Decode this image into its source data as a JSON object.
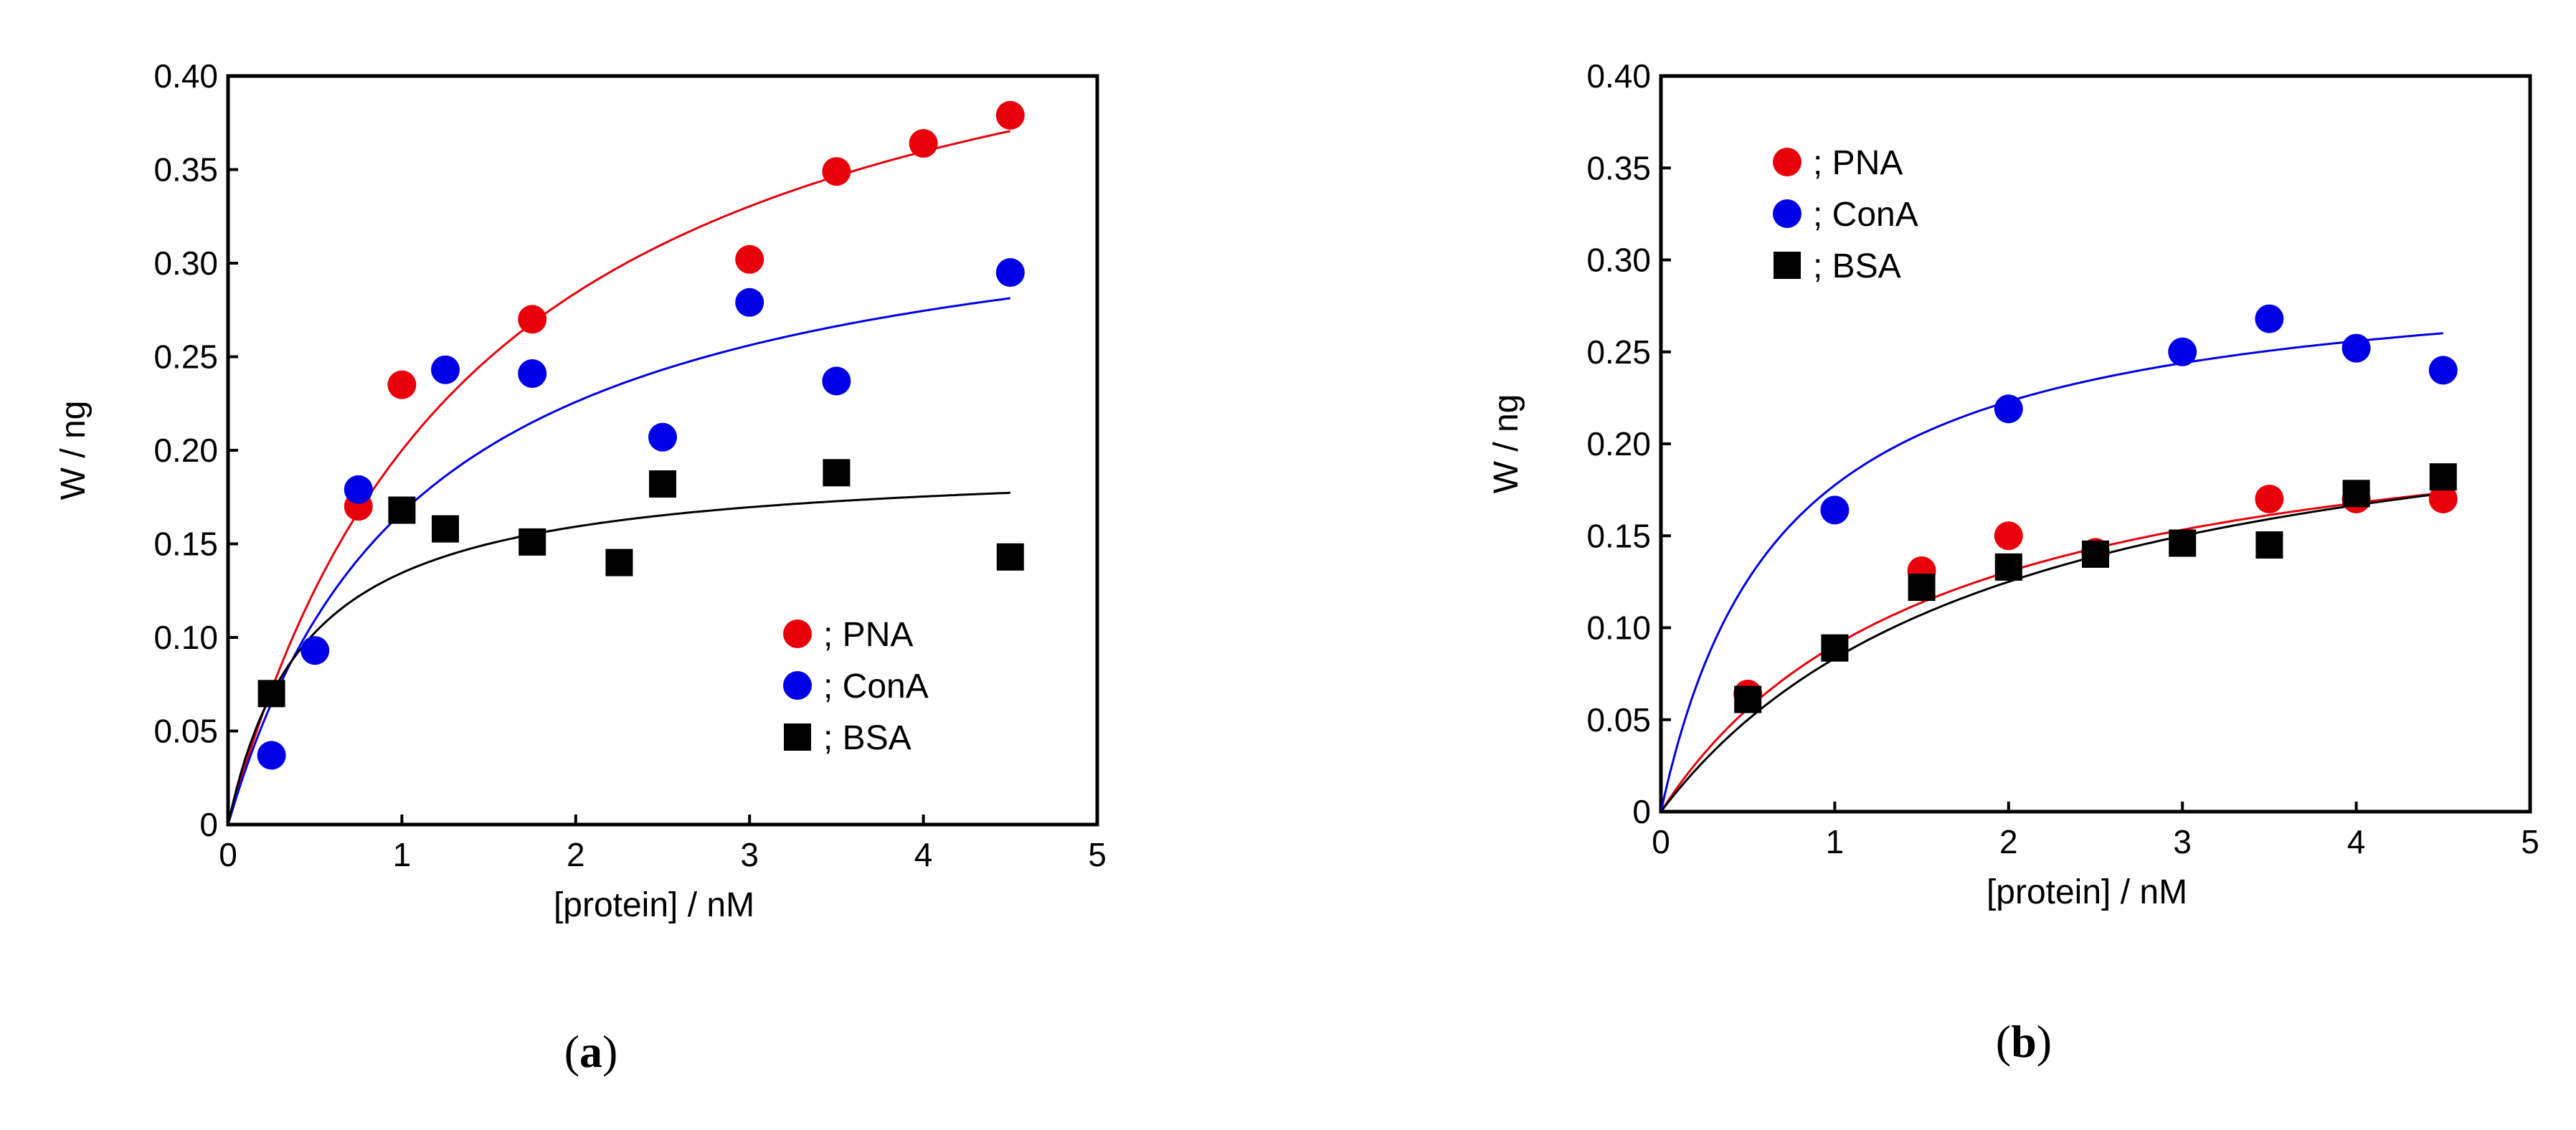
{
  "chart_data": [
    {
      "type": "scatter",
      "panel_label": "(a)",
      "panel_label_letter": "a",
      "xlabel": "[protein] / nM",
      "ylabel": "W / ng",
      "xlim": [
        0,
        5
      ],
      "ylim": [
        0,
        0.4
      ],
      "x_ticks": [
        "0",
        "1",
        "2",
        "3",
        "4",
        "5"
      ],
      "y_ticks": [
        "0",
        "0.05",
        "0.10",
        "0.15",
        "0.20",
        "0.25",
        "0.30",
        "0.35",
        "0.40"
      ],
      "grid": false,
      "legend_position": "bottom-right",
      "series": [
        {
          "name": "; PNA",
          "color": "#e8000b",
          "marker": "circle",
          "points": [
            [
              0.75,
              0.17
            ],
            [
              1.0,
              0.235
            ],
            [
              1.75,
              0.27
            ],
            [
              3.0,
              0.302
            ],
            [
              3.5,
              0.349
            ],
            [
              4.0,
              0.364
            ],
            [
              4.5,
              0.379
            ]
          ],
          "fit": {
            "vmax": 0.49,
            "k": 1.45,
            "x_end": 4.5
          }
        },
        {
          "name": "; ConA",
          "color": "#0000e6",
          "marker": "circle",
          "points": [
            [
              0.25,
              0.037
            ],
            [
              0.5,
              0.093
            ],
            [
              0.75,
              0.179
            ],
            [
              1.25,
              0.243
            ],
            [
              1.75,
              0.241
            ],
            [
              2.5,
              0.207
            ],
            [
              3.0,
              0.279
            ],
            [
              3.5,
              0.237
            ],
            [
              4.5,
              0.295
            ]
          ],
          "fit": {
            "vmax": 0.35,
            "k": 1.1,
            "x_end": 4.5
          }
        },
        {
          "name": "; BSA",
          "color": "#000000",
          "marker": "square",
          "points": [
            [
              0.25,
              0.07
            ],
            [
              1.0,
              0.168
            ],
            [
              1.25,
              0.158
            ],
            [
              1.75,
              0.151
            ],
            [
              2.25,
              0.14
            ],
            [
              2.5,
              0.182
            ],
            [
              3.5,
              0.188
            ],
            [
              4.5,
              0.143
            ]
          ],
          "fit": {
            "vmax": 0.195,
            "k": 0.45,
            "x_end": 4.5
          }
        }
      ]
    },
    {
      "type": "scatter",
      "panel_label": "(b)",
      "panel_label_letter": "b",
      "xlabel": "[protein] / nM",
      "ylabel": "W / ng",
      "xlim": [
        0,
        5
      ],
      "ylim": [
        0,
        0.4
      ],
      "x_ticks": [
        "0",
        "1",
        "2",
        "3",
        "4",
        "5"
      ],
      "y_ticks": [
        "0",
        "0.05",
        "0.10",
        "0.15",
        "0.20",
        "0.25",
        "0.30",
        "0.35",
        "0.40"
      ],
      "grid": false,
      "legend_position": "top-left",
      "series": [
        {
          "name": "; PNA",
          "color": "#e8000b",
          "marker": "circle",
          "points": [
            [
              0.5,
              0.064
            ],
            [
              1.5,
              0.131
            ],
            [
              2.0,
              0.15
            ],
            [
              2.5,
              0.141
            ],
            [
              3.5,
              0.17
            ],
            [
              4.0,
              0.17
            ],
            [
              4.5,
              0.17
            ]
          ],
          "fit": {
            "vmax": 0.235,
            "k": 1.6,
            "x_end": 4.5
          }
        },
        {
          "name": "; ConA",
          "color": "#0000e6",
          "marker": "circle",
          "points": [
            [
              1.0,
              0.164
            ],
            [
              2.0,
              0.219
            ],
            [
              3.0,
              0.25
            ],
            [
              3.5,
              0.268
            ],
            [
              4.0,
              0.252
            ],
            [
              4.5,
              0.24
            ]
          ],
          "fit": {
            "vmax": 0.3,
            "k": 0.69,
            "x_end": 4.5
          }
        },
        {
          "name": "; BSA",
          "color": "#000000",
          "marker": "square",
          "points": [
            [
              0.5,
              0.061
            ],
            [
              1.0,
              0.089
            ],
            [
              1.5,
              0.122
            ],
            [
              2.0,
              0.133
            ],
            [
              2.5,
              0.14
            ],
            [
              3.0,
              0.146
            ],
            [
              3.5,
              0.145
            ],
            [
              4.0,
              0.173
            ],
            [
              4.5,
              0.182
            ]
          ],
          "fit": {
            "vmax": 0.25,
            "k": 2.0,
            "x_end": 4.5
          }
        }
      ]
    }
  ]
}
